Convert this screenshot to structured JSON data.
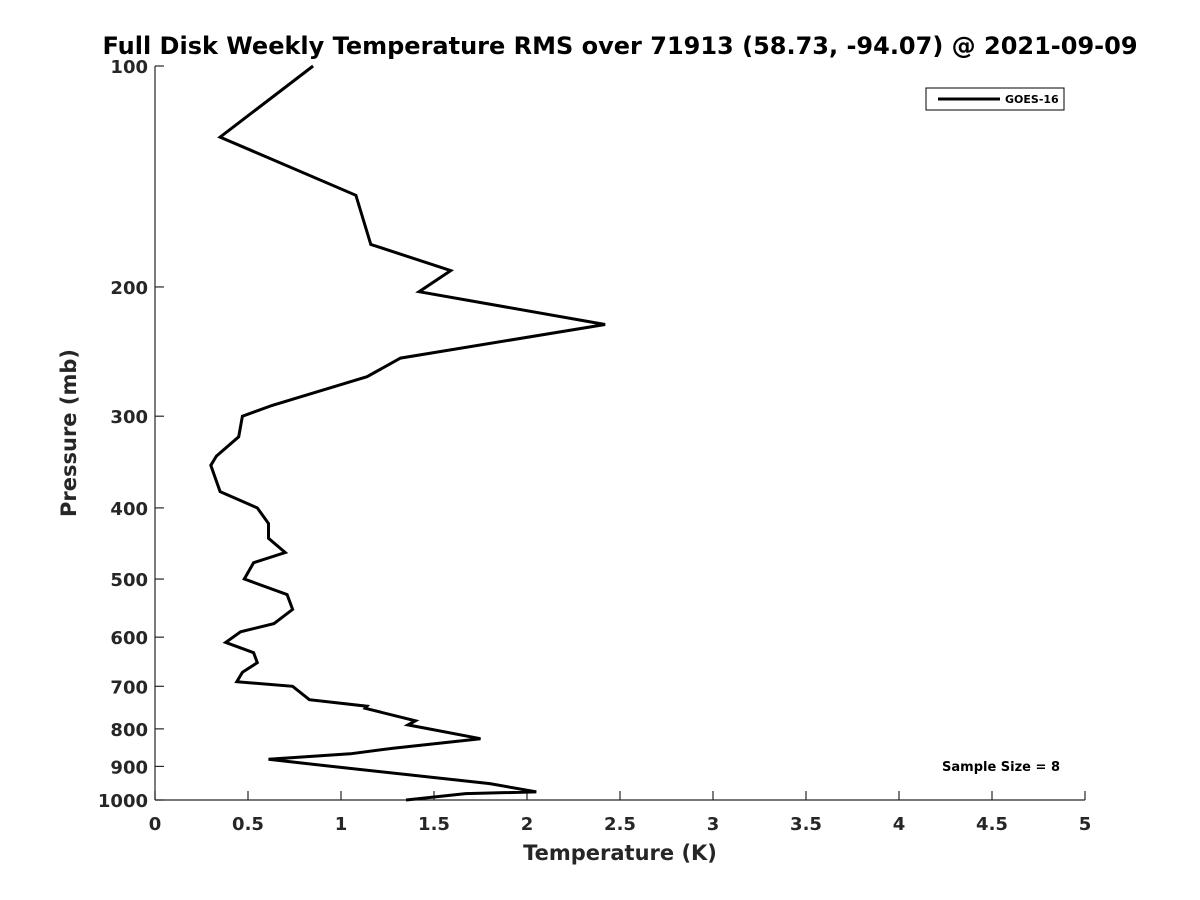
{
  "chart_data": {
    "type": "line",
    "title": "Full Disk Weekly Temperature RMS over 71913 (58.73, -94.07) @ 2021-09-09",
    "xlabel": "Temperature (K)",
    "ylabel": "Pressure (mb)",
    "xlim": [
      0,
      5
    ],
    "ylim": [
      100,
      1000
    ],
    "y_scale": "log",
    "y_reversed": true,
    "x_ticks": [
      "0",
      "0.5",
      "1",
      "1.5",
      "2",
      "2.5",
      "3",
      "3.5",
      "4",
      "4.5",
      "5"
    ],
    "y_ticks": [
      "100",
      "200",
      "300",
      "400",
      "500",
      "600",
      "700",
      "800",
      "900",
      "1000"
    ],
    "legend_position": "top-right",
    "grid": false,
    "annotation": "Sample Size = 8",
    "series": [
      {
        "name": "GOES-16",
        "color": "#000000",
        "points": [
          [
            0.85,
            100
          ],
          [
            0.35,
            125
          ],
          [
            1.08,
            150
          ],
          [
            1.16,
            175
          ],
          [
            1.59,
            190
          ],
          [
            1.42,
            203
          ],
          [
            2.42,
            225
          ],
          [
            1.32,
            250
          ],
          [
            1.14,
            265
          ],
          [
            0.63,
            290
          ],
          [
            0.47,
            300
          ],
          [
            0.45,
            320
          ],
          [
            0.33,
            340
          ],
          [
            0.3,
            350
          ],
          [
            0.35,
            380
          ],
          [
            0.55,
            400
          ],
          [
            0.61,
            420
          ],
          [
            0.61,
            440
          ],
          [
            0.7,
            460
          ],
          [
            0.53,
            475
          ],
          [
            0.48,
            500
          ],
          [
            0.71,
            525
          ],
          [
            0.74,
            550
          ],
          [
            0.64,
            575
          ],
          [
            0.46,
            590
          ],
          [
            0.38,
            610
          ],
          [
            0.53,
            630
          ],
          [
            0.55,
            650
          ],
          [
            0.47,
            670
          ],
          [
            0.44,
            690
          ],
          [
            0.74,
            700
          ],
          [
            0.83,
            730
          ],
          [
            1.14,
            745
          ],
          [
            1.13,
            750
          ],
          [
            1.4,
            780
          ],
          [
            1.36,
            790
          ],
          [
            1.75,
            825
          ],
          [
            1.28,
            850
          ],
          [
            1.05,
            865
          ],
          [
            0.61,
            880
          ],
          [
            0.95,
            900
          ],
          [
            1.8,
            950
          ],
          [
            2.05,
            975
          ],
          [
            1.67,
            980
          ],
          [
            1.35,
            1000
          ]
        ]
      }
    ]
  }
}
